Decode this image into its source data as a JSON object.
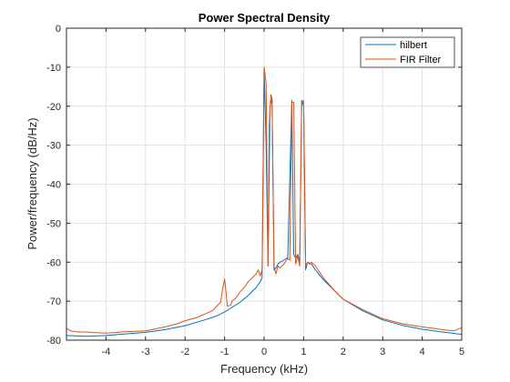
{
  "chart_data": {
    "type": "line",
    "title": "Power Spectral Density",
    "xlabel": "Frequency (kHz)",
    "ylabel": "Power/frequency (dB/Hz)",
    "xlim": [
      -5,
      5
    ],
    "ylim": [
      -80,
      0
    ],
    "xticks": [
      -4,
      -3,
      -2,
      -1,
      0,
      1,
      2,
      3,
      4,
      5
    ],
    "xtick_labels": [
      "-4",
      "-3",
      "-2",
      "-1",
      "0",
      "1",
      "2",
      "3",
      "4",
      "5"
    ],
    "yticks": [
      0,
      -10,
      -20,
      -30,
      -40,
      -50,
      -60,
      -70,
      -80
    ],
    "ytick_labels": [
      "0",
      "-10",
      "-20",
      "-30",
      "-40",
      "-50",
      "-60",
      "-70",
      "-80"
    ],
    "grid": true,
    "legend_position": "top-right",
    "series": [
      {
        "name": "hilbert",
        "color": "#0072BD",
        "x": [
          -5,
          -4.5,
          -4,
          -3.5,
          -3,
          -2.5,
          -2,
          -1.5,
          -1.2,
          -1.0,
          -0.8,
          -0.6,
          -0.4,
          -0.3,
          -0.2,
          -0.1,
          -0.05,
          0,
          0.05,
          0.1,
          0.15,
          0.2,
          0.25,
          0.3,
          0.35,
          0.4,
          0.5,
          0.6,
          0.7,
          0.75,
          0.8,
          0.85,
          0.9,
          0.95,
          1.0,
          1.05,
          1.1,
          1.2,
          1.3,
          1.5,
          2.0,
          2.5,
          3.0,
          3.5,
          4.0,
          4.5,
          5.0
        ],
        "y": [
          -78.8,
          -79.0,
          -78.8,
          -78.4,
          -78.0,
          -77.3,
          -76.3,
          -74.8,
          -73.8,
          -72.8,
          -71.5,
          -70.2,
          -68.5,
          -67.5,
          -66.5,
          -65.0,
          -64.0,
          -10.0,
          -30.0,
          -61.0,
          -20.0,
          -18.0,
          -62.0,
          -61.5,
          -60.5,
          -60.0,
          -59.5,
          -58.8,
          -18.5,
          -58.0,
          -59.0,
          -58.0,
          -60.0,
          -18.5,
          -20.0,
          -62.0,
          -60.0,
          -60.5,
          -62.0,
          -64.5,
          -69.5,
          -72.5,
          -74.8,
          -76.2,
          -77.2,
          -77.9,
          -78.5
        ]
      },
      {
        "name": "FIR Filter",
        "color": "#D95319",
        "x": [
          -5,
          -4.9,
          -4.7,
          -4.5,
          -4.2,
          -4.0,
          -3.7,
          -3.5,
          -3.2,
          -3.0,
          -2.7,
          -2.5,
          -2.2,
          -2.0,
          -1.7,
          -1.5,
          -1.3,
          -1.1,
          -1.05,
          -1.0,
          -0.97,
          -0.93,
          -0.9,
          -0.85,
          -0.8,
          -0.75,
          -0.7,
          -0.6,
          -0.5,
          -0.4,
          -0.3,
          -0.2,
          -0.15,
          -0.1,
          -0.05,
          0,
          0.05,
          0.1,
          0.13,
          0.17,
          0.2,
          0.25,
          0.3,
          0.35,
          0.4,
          0.5,
          0.6,
          0.65,
          0.7,
          0.75,
          0.8,
          0.85,
          0.9,
          0.95,
          1.0,
          1.05,
          1.1,
          1.15,
          1.2,
          1.3,
          1.5,
          1.8,
          2.0,
          2.5,
          3.0,
          3.5,
          4.0,
          4.3,
          4.6,
          4.8,
          5.0
        ],
        "y": [
          -77.0,
          -77.6,
          -77.9,
          -77.9,
          -78.1,
          -78.2,
          -78.0,
          -77.8,
          -77.7,
          -77.6,
          -77.0,
          -76.6,
          -75.8,
          -75.0,
          -74.2,
          -73.3,
          -72.4,
          -70.2,
          -67.0,
          -64.3,
          -67.0,
          -71.3,
          -71.2,
          -71.0,
          -69.8,
          -69.6,
          -69.0,
          -67.5,
          -66.5,
          -65.0,
          -64.0,
          -63.0,
          -62.0,
          -63.5,
          -62.0,
          -10.0,
          -14.0,
          -61.0,
          -25.0,
          -17.0,
          -18.0,
          -61.0,
          -63.0,
          -61.0,
          -61.5,
          -60.5,
          -59.0,
          -59.5,
          -19.0,
          -19.0,
          -60.5,
          -58.5,
          -61.0,
          -19.5,
          -18.5,
          -61.0,
          -60.0,
          -60.5,
          -60.0,
          -61.0,
          -64.0,
          -67.5,
          -69.5,
          -72.2,
          -74.5,
          -75.8,
          -76.6,
          -77.0,
          -77.4,
          -77.6,
          -76.8
        ]
      }
    ]
  }
}
